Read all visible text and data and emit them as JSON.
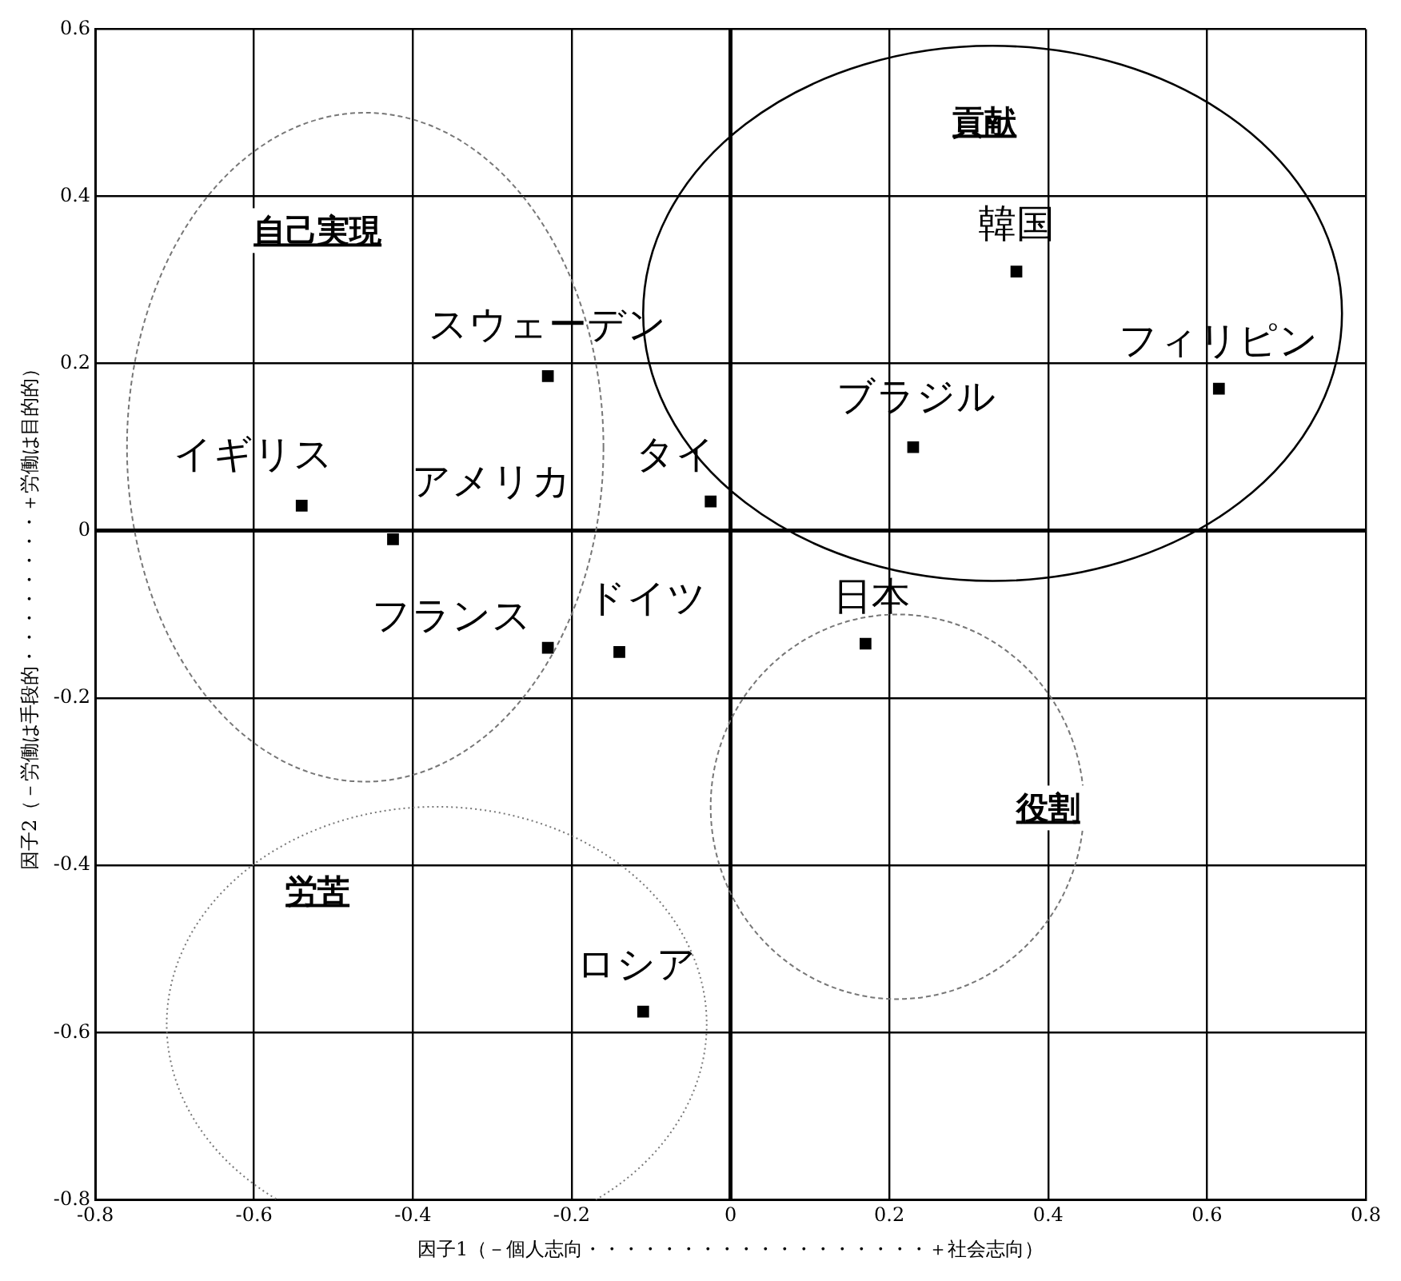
{
  "chart_data": {
    "type": "scatter",
    "xlabel": "因子1（－個人志向・・・・・・・・・・・・・・・・・・＋社会志向）",
    "ylabel": "因子2（－労働は手段的・・・・・・・・＋労働は目的的）",
    "x": [
      -0.54,
      -0.425,
      -0.23,
      -0.23,
      -0.14,
      -0.025,
      0.36,
      0.23,
      0.615,
      0.17,
      -0.11
    ],
    "values": [
      0.03,
      -0.01,
      0.185,
      -0.14,
      -0.145,
      0.035,
      0.31,
      0.1,
      0.17,
      -0.135,
      -0.575
    ],
    "color": "#000000",
    "marker": "square",
    "xlim": [
      -0.8,
      0.8
    ],
    "xticks": [
      -0.8,
      -0.6,
      -0.4,
      -0.2,
      0,
      0.2,
      0.4,
      0.6,
      0.8
    ],
    "ylim": [
      -0.8,
      0.6
    ],
    "yticks": [
      -0.8,
      -0.6,
      -0.4,
      -0.2,
      0,
      0.2,
      0.4,
      0.6
    ],
    "grid": true,
    "legend": false,
    "annotations": [
      {
        "text": "イギリス",
        "x": -0.54,
        "y": 0.03
      },
      {
        "text": "アメリカ",
        "x": -0.425,
        "y": -0.01
      },
      {
        "text": "スウェーデン",
        "x": -0.23,
        "y": 0.185
      },
      {
        "text": "フランス",
        "x": -0.23,
        "y": -0.14
      },
      {
        "text": "ドイツ",
        "x": -0.14,
        "y": -0.145
      },
      {
        "text": "タイ",
        "x": -0.025,
        "y": 0.035
      },
      {
        "text": "韓国",
        "x": 0.36,
        "y": 0.31
      },
      {
        "text": "ブラジル",
        "x": 0.23,
        "y": 0.1
      },
      {
        "text": "フィリピン",
        "x": 0.615,
        "y": 0.17
      },
      {
        "text": "日本",
        "x": 0.17,
        "y": -0.135
      },
      {
        "text": "ロシア",
        "x": -0.11,
        "y": -0.575
      },
      "自己実現",
      "貢献",
      "役割",
      "労苦"
    ]
  }
}
